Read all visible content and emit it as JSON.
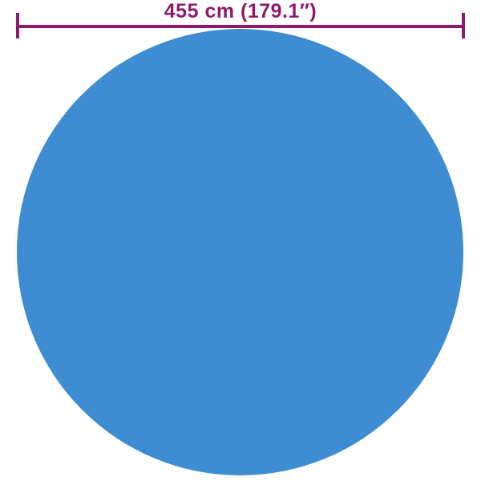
{
  "dimension": {
    "label": "455 cm (179.1″)"
  },
  "icons": {
    "dimension_line": "horizontal-measure-line-with-end-ticks"
  },
  "colors": {
    "accent": "#8E1A6B",
    "circle": "#3E8CD2",
    "background": "#FFFFFF"
  }
}
